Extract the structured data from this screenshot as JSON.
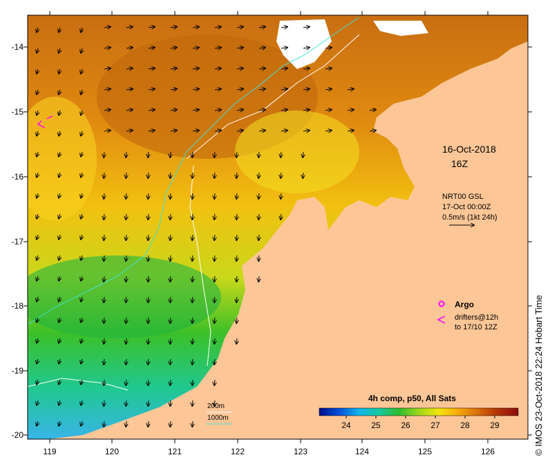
{
  "map": {
    "date_line1": "16-Oct-2018",
    "date_line2": "16Z",
    "current_label": "NRT00 GSL",
    "current_time": "17-Oct 00:00Z",
    "current_scale": "0.5m/s (1kt 24h)",
    "legend_argo": "Argo",
    "legend_drifters_1": "drifters@12h",
    "legend_drifters_2": "to 17/10 12Z",
    "isobath_200": "200m",
    "isobath_1000": "1000m",
    "colorbar_title": "4h comp, p50, All Sats",
    "credit": "© IMOS 23-Oct-2018 22:24 Hobart Time"
  },
  "axes": {
    "lon_ticks": [
      "119",
      "120",
      "121",
      "122",
      "123",
      "124",
      "125",
      "126"
    ],
    "lat_ticks": [
      "-14",
      "-15",
      "-16",
      "-17",
      "-18",
      "-19",
      "-20"
    ]
  },
  "colorbar": {
    "ticks": [
      "24",
      "25",
      "26",
      "27",
      "28",
      "29"
    ],
    "stops": [
      "#000f8c",
      "#0050d8",
      "#12b4e8",
      "#18c8a0",
      "#2ebc2c",
      "#9ed81c",
      "#f4e40c",
      "#f6a808",
      "#d86c08",
      "#b03008",
      "#8c0c0c"
    ]
  },
  "colors": {
    "land": "#fcc697",
    "isobath_200": "#ffffff",
    "isobath_1000": "#40e0d0",
    "argo": "#ff00ff"
  }
}
